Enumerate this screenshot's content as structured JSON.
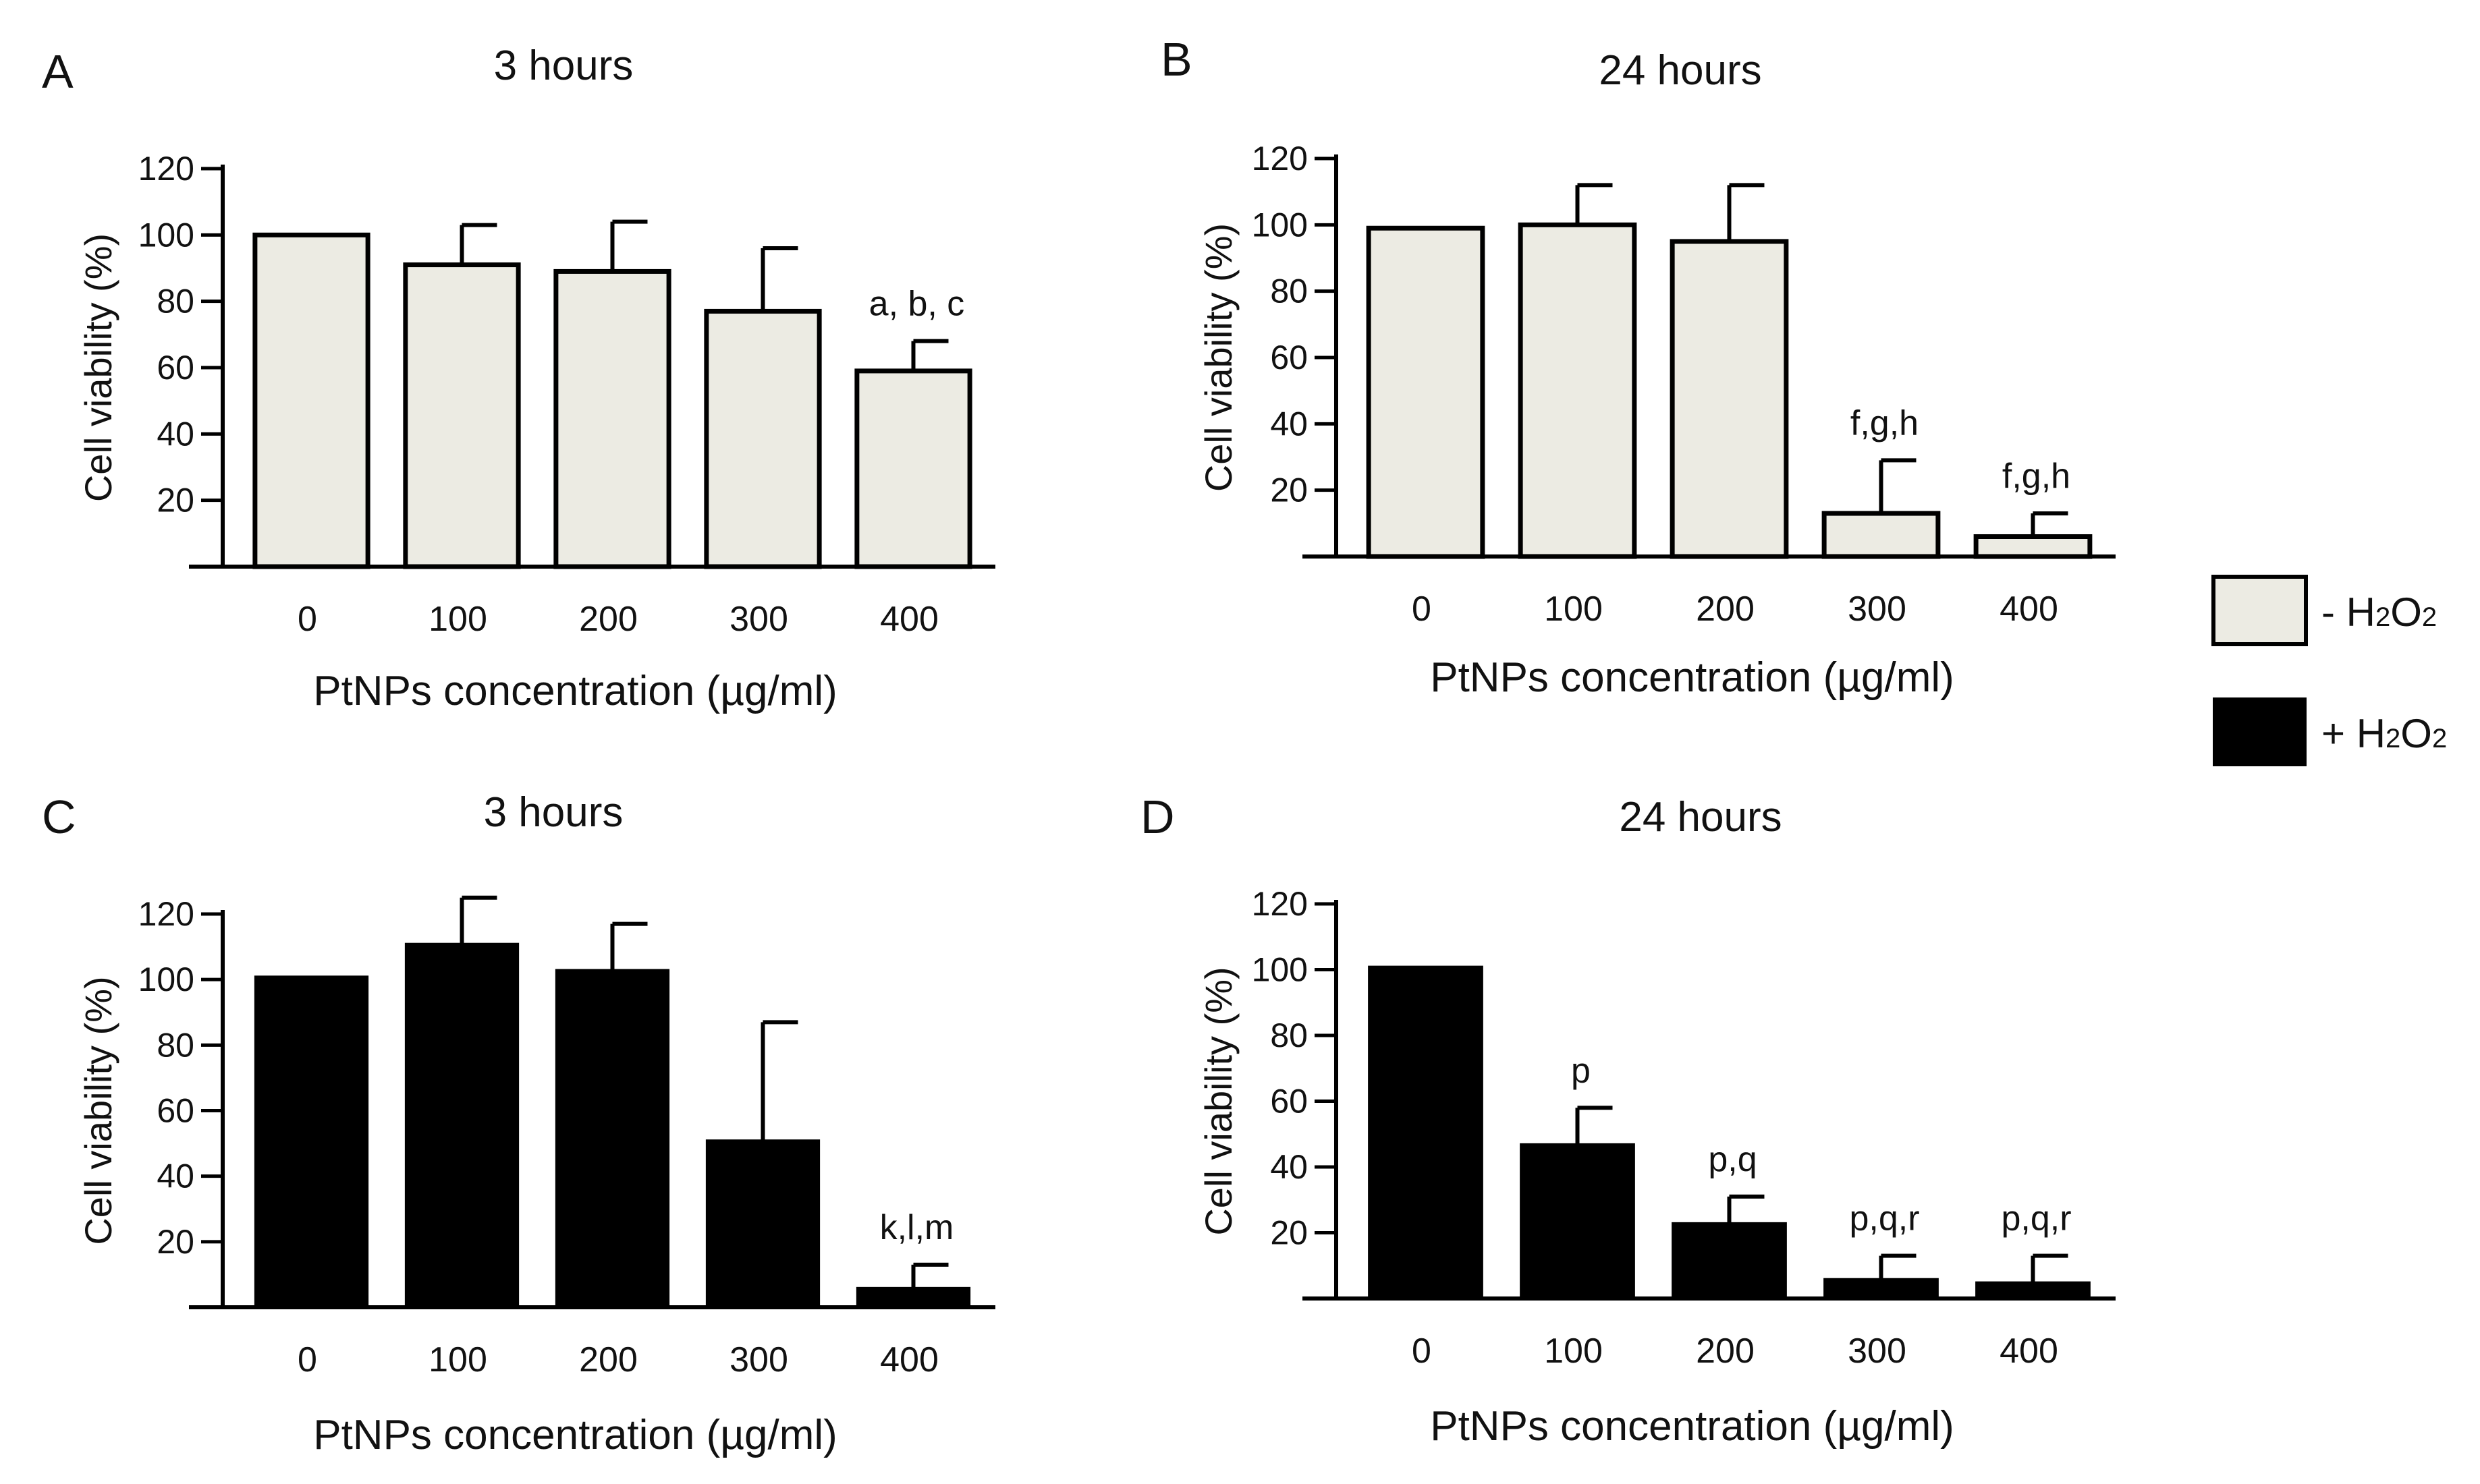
{
  "figure": {
    "legend": [
      {
        "key": "minus",
        "prefix": "- H",
        "sub1": "2",
        "mid": "O",
        "sub2": "2",
        "color": "#ECEBE3"
      },
      {
        "key": "plus",
        "prefix": "+ H",
        "sub1": "2",
        "mid": "O",
        "sub2": "2",
        "color": "#000000"
      }
    ]
  },
  "chart_data": [
    {
      "panel": "A",
      "type": "bar",
      "title": "3 hours",
      "xlabel": "PtNPs concentration (µg/ml)",
      "ylabel": "Cell viability (%)",
      "categories": [
        "0",
        "100",
        "200",
        "300",
        "400"
      ],
      "series": [
        {
          "name": "- H2O2",
          "values": [
            100,
            91,
            89,
            77,
            59
          ],
          "errors": [
            0,
            12,
            15,
            19,
            9
          ],
          "color": "#ECEBE3"
        }
      ],
      "annotations": [
        {
          "category": "400",
          "text": "a, b, c"
        }
      ],
      "yticks": [
        20,
        40,
        60,
        80,
        100,
        120
      ],
      "ylim": [
        0,
        120
      ]
    },
    {
      "panel": "B",
      "type": "bar",
      "title": "24 hours",
      "xlabel": "PtNPs concentration (µg/ml)",
      "ylabel": "Cell viability (%)",
      "categories": [
        "0",
        "100",
        "200",
        "300",
        "400"
      ],
      "series": [
        {
          "name": "- H2O2",
          "values": [
            99,
            100,
            95,
            13,
            6
          ],
          "errors": [
            0,
            12,
            17,
            16,
            7
          ],
          "color": "#ECEBE3"
        }
      ],
      "annotations": [
        {
          "category": "300",
          "text": "f,g,h"
        },
        {
          "category": "400",
          "text": "f,g,h"
        }
      ],
      "yticks": [
        20,
        40,
        60,
        80,
        100,
        120
      ],
      "ylim": [
        0,
        120
      ]
    },
    {
      "panel": "C",
      "type": "bar",
      "title": "3 hours",
      "xlabel": "PtNPs concentration (µg/ml)",
      "ylabel": "Cell viability (%)",
      "categories": [
        "0",
        "100",
        "200",
        "300",
        "400"
      ],
      "series": [
        {
          "name": "+ H2O2",
          "values": [
            101,
            111,
            103,
            51,
            6
          ],
          "errors": [
            0,
            14,
            14,
            36,
            7
          ],
          "color": "#000000"
        }
      ],
      "annotations": [
        {
          "category": "400",
          "text": "k,l,m"
        }
      ],
      "yticks": [
        20,
        40,
        60,
        80,
        100,
        120
      ],
      "ylim": [
        0,
        120
      ]
    },
    {
      "panel": "D",
      "type": "bar",
      "title": "24 hours",
      "xlabel": "PtNPs concentration (µg/ml)",
      "ylabel": "Cell viability (%)",
      "categories": [
        "0",
        "100",
        "200",
        "300",
        "400"
      ],
      "series": [
        {
          "name": "+ H2O2",
          "values": [
            101,
            47,
            23,
            6,
            5
          ],
          "errors": [
            0,
            11,
            8,
            7,
            8
          ],
          "color": "#000000"
        }
      ],
      "annotations": [
        {
          "category": "100",
          "text": "p"
        },
        {
          "category": "200",
          "text": "p,q"
        },
        {
          "category": "300",
          "text": "p,q,r"
        },
        {
          "category": "400",
          "text": "p,q,r"
        }
      ],
      "yticks": [
        20,
        40,
        60,
        80,
        100,
        120
      ],
      "ylim": [
        0,
        120
      ]
    }
  ]
}
